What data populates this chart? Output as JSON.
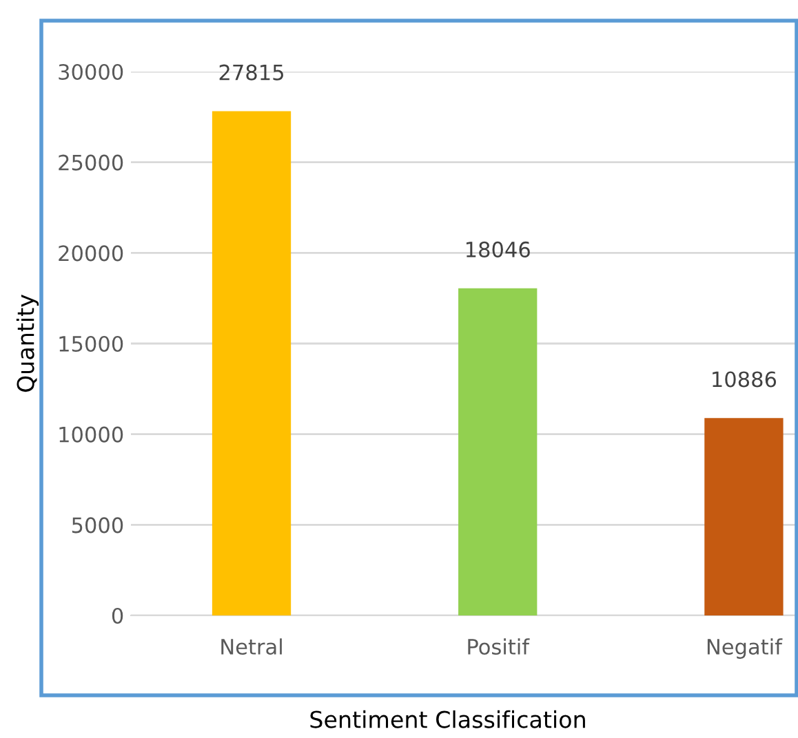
{
  "chart_data": {
    "type": "bar",
    "xlabel": "Sentiment Classification",
    "ylabel": "Quantity",
    "categories": [
      "Netral",
      "Positif",
      "Negatif"
    ],
    "values": [
      27815,
      18046,
      10886
    ],
    "colors": [
      "#ffc000",
      "#92d050",
      "#c55a11"
    ],
    "ylim": [
      0,
      30000
    ],
    "yticks": [
      0,
      5000,
      10000,
      15000,
      20000,
      25000,
      30000
    ],
    "grid": "y",
    "data_labels": true,
    "legend": false
  }
}
